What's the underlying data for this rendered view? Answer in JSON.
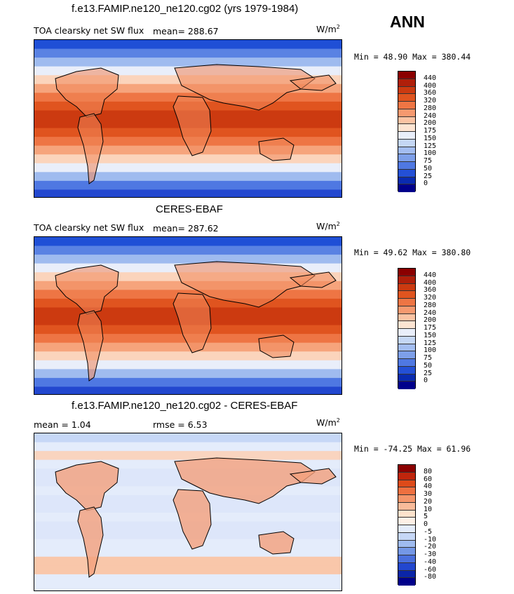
{
  "panels": [
    {
      "title": "f.e13.FAMIP.ne120_ne120.cg02 (yrs 1979-1984)",
      "variable": "TOA clearsky net SW flux",
      "mean_label": "mean= 288.67",
      "units": "W/m",
      "units_exp": "2",
      "minmax": "Min =  48.90 Max = 380.44",
      "colorbar_labels": [
        "440",
        "400",
        "360",
        "320",
        "280",
        "240",
        "200",
        "175",
        "150",
        "125",
        "100",
        "75",
        "50",
        "25",
        "0"
      ]
    },
    {
      "title": "CERES-EBAF",
      "variable": "TOA clearsky net SW flux",
      "mean_label": "mean= 287.62",
      "units": "W/m",
      "units_exp": "2",
      "minmax": "Min =  49.62 Max = 380.80",
      "colorbar_labels": [
        "440",
        "400",
        "360",
        "320",
        "280",
        "240",
        "200",
        "175",
        "150",
        "125",
        "100",
        "75",
        "50",
        "25",
        "0"
      ]
    },
    {
      "title": "f.e13.FAMIP.ne120_ne120.cg02 - CERES-EBAF",
      "mean_label": "mean =   1.04",
      "rmse_label": "rmse =   6.53",
      "units": "W/m",
      "units_exp": "2",
      "minmax": "Min = -74.25 Max =  61.96",
      "colorbar_labels": [
        "80",
        "60",
        "40",
        "30",
        "20",
        "10",
        "5",
        "0",
        "-5",
        "-10",
        "-20",
        "-30",
        "-40",
        "-60",
        "-80"
      ]
    }
  ],
  "season": "ANN",
  "colors": {
    "abs_palette": [
      "#8b0000",
      "#b01f0a",
      "#cc3a10",
      "#e0541f",
      "#ee7544",
      "#f6996f",
      "#fbc3a3",
      "#fde4d2",
      "#e9eefa",
      "#c5d7f5",
      "#a3bdf1",
      "#7d9fe9",
      "#4f78e2",
      "#2450d6",
      "#0a2bb0",
      "#00008b"
    ],
    "diff_palette": [
      "#8b0000",
      "#c0250c",
      "#dd4a1a",
      "#ee7040",
      "#f4956a",
      "#f9bb9a",
      "#fde2cc",
      "#fdf0e6",
      "#e4ecfb",
      "#c6d7f6",
      "#9fbbef",
      "#7497e6",
      "#4a6fdd",
      "#2247cf",
      "#0a25a8",
      "#00008b"
    ]
  }
}
